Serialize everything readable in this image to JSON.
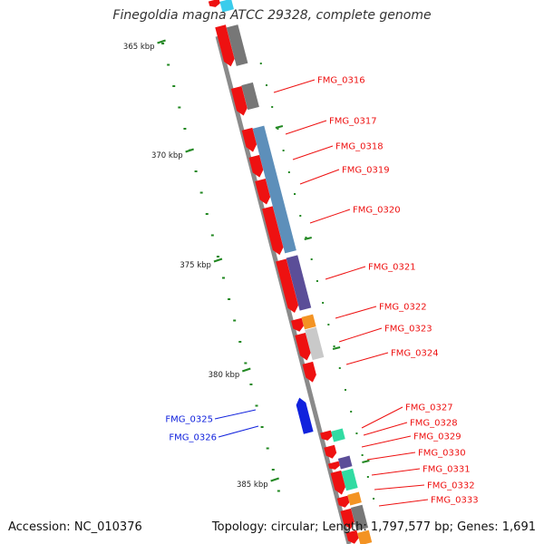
{
  "title": "Finegoldia magna ATCC 29328, complete genome",
  "footer": {
    "accession": "Accession: NC_010376",
    "summary": "Topology: circular; Length: 1,797,577 bp; Genes: 1,691"
  },
  "scale_labels": [
    "365 kbp",
    "370 kbp",
    "375 kbp",
    "380 kbp",
    "385 kbp"
  ],
  "gene_labels": {
    "forward": [
      "FMG_0316",
      "FMG_0317",
      "FMG_0318",
      "FMG_0319",
      "FMG_0320",
      "FMG_0321",
      "FMG_0322",
      "FMG_0323",
      "FMG_0324",
      "FMG_0327",
      "FMG_0328",
      "FMG_0329",
      "FMG_0330",
      "FMG_0331",
      "FMG_0332",
      "FMG_0333"
    ],
    "reverse": [
      "FMG_0325",
      "FMG_0326"
    ]
  },
  "colors": {
    "forward": "#ee1111",
    "reverse": "#1122dd",
    "backbone": "#888888",
    "tick": "#228822",
    "steelblue": "#4f86b4",
    "purple": "#4d3f8f",
    "grey": "#6b6b6b",
    "lightgrey": "#c4c4c4",
    "orange": "#f28a10",
    "green": "#1fd89a",
    "cyan": "#29c8ea"
  }
}
